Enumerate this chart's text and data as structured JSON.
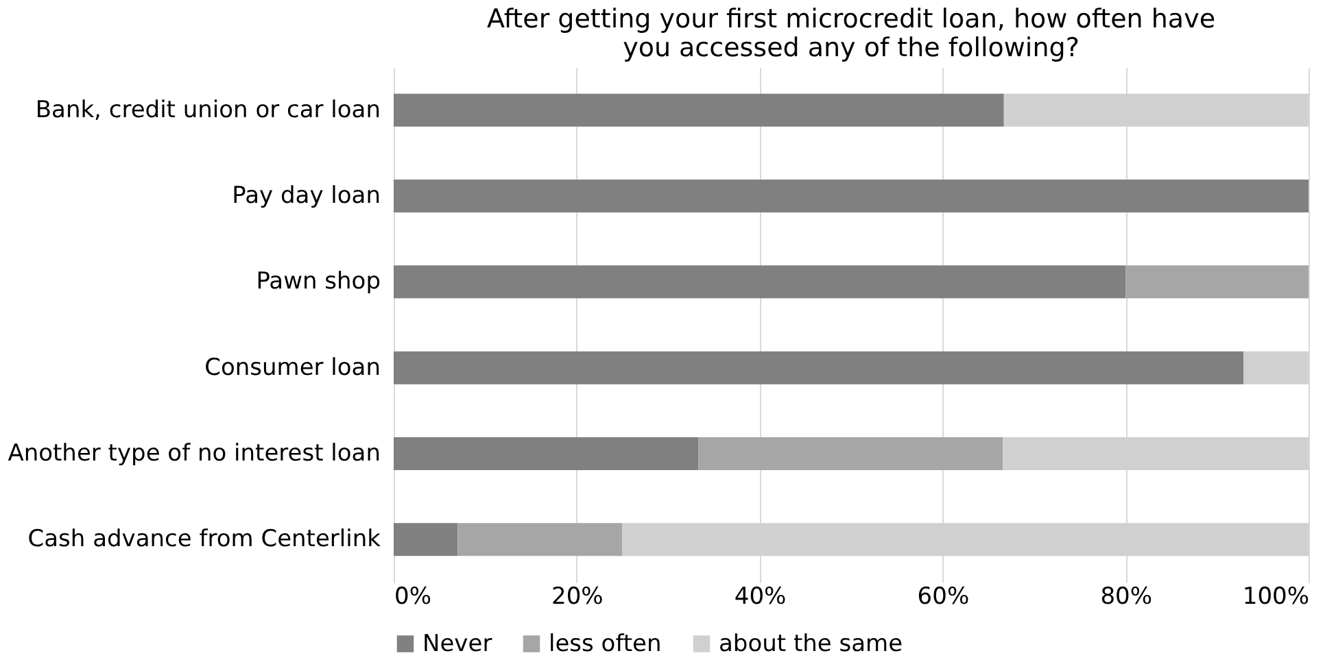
{
  "chart_data": {
    "type": "bar",
    "orientation": "horizontal",
    "stacked": true,
    "title": [
      "After getting your first microcredit loan, how often have",
      "you accessed any of the following?"
    ],
    "categories": [
      "Bank, credit union or car loan",
      "Pay day loan",
      "Pawn shop",
      "Consumer loan",
      "Another type of no interest loan",
      "Cash advance from Centerlink"
    ],
    "series": [
      {
        "name": "Never",
        "color": "#808080",
        "values": [
          66.7,
          100,
          80,
          92.9,
          33.3,
          7
        ]
      },
      {
        "name": "less often",
        "color": "#a6a6a6",
        "values": [
          0,
          0,
          20,
          0,
          33.3,
          18
        ]
      },
      {
        "name": "about the same",
        "color": "#d0d0d0",
        "values": [
          33.3,
          0,
          0,
          7.1,
          33.4,
          75
        ]
      }
    ],
    "xlim": [
      0,
      100
    ],
    "xticks": [
      {
        "value": 0,
        "label": "0%"
      },
      {
        "value": 20,
        "label": "20%"
      },
      {
        "value": 40,
        "label": "40%"
      },
      {
        "value": 60,
        "label": "60%"
      },
      {
        "value": 80,
        "label": "80%"
      },
      {
        "value": 100,
        "label": "100%"
      }
    ],
    "grid": "x",
    "legend": "bottom"
  }
}
